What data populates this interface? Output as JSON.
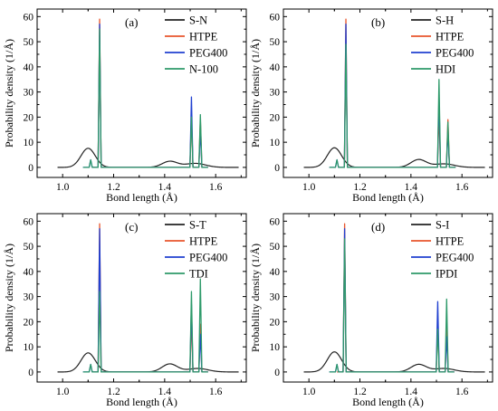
{
  "chart_data": [
    {
      "type": "line",
      "panel_label": "(a)",
      "xlabel": "Bond length (Å)",
      "ylabel": "Probability density (1/Å)",
      "xlim": [
        0.9,
        1.72
      ],
      "ylim": [
        -4,
        63
      ],
      "xticks": [
        "1.0",
        "1.2",
        "1.4",
        "1.6"
      ],
      "yticks": [
        "0",
        "10",
        "20",
        "30",
        "40",
        "50",
        "60"
      ],
      "legend_position": "top-right",
      "series": [
        {
          "name": "S-N",
          "color": "#222222",
          "kind": "smooth",
          "bumps": [
            {
              "center": 1.1,
              "height": 7.6,
              "width": 0.028
            },
            {
              "center": 1.42,
              "height": 2.4,
              "width": 0.03
            },
            {
              "center": 1.52,
              "height": 1.6,
              "width": 0.04
            }
          ]
        },
        {
          "name": "HTPE",
          "color": "#e8552b",
          "kind": "spikes",
          "spikes": [
            {
              "x": 1.145,
              "y": 59
            },
            {
              "x": 1.505,
              "y": 21
            },
            {
              "x": 1.54,
              "y": 19
            }
          ]
        },
        {
          "name": "PEG400",
          "color": "#2040d0",
          "kind": "spikes",
          "spikes": [
            {
              "x": 1.11,
              "y": 3
            },
            {
              "x": 1.145,
              "y": 57
            },
            {
              "x": 1.505,
              "y": 28
            },
            {
              "x": 1.54,
              "y": 15
            }
          ]
        },
        {
          "name": "N-100",
          "color": "#2e9a6a",
          "kind": "spikes",
          "spikes": [
            {
              "x": 1.11,
              "y": 3
            },
            {
              "x": 1.145,
              "y": 55
            },
            {
              "x": 1.505,
              "y": 20
            },
            {
              "x": 1.54,
              "y": 21
            }
          ]
        }
      ]
    },
    {
      "type": "line",
      "panel_label": "(b)",
      "xlabel": "Bond length (Å)",
      "ylabel": "Probability density (1/Å)",
      "xlim": [
        0.9,
        1.72
      ],
      "ylim": [
        -4,
        63
      ],
      "xticks": [
        "1.0",
        "1.2",
        "1.4",
        "1.6"
      ],
      "yticks": [
        "0",
        "10",
        "20",
        "30",
        "40",
        "50",
        "60"
      ],
      "legend_position": "top-right",
      "series": [
        {
          "name": "S-H",
          "color": "#222222",
          "kind": "smooth",
          "bumps": [
            {
              "center": 1.1,
              "height": 7.8,
              "width": 0.028
            },
            {
              "center": 1.43,
              "height": 3.1,
              "width": 0.03
            },
            {
              "center": 1.53,
              "height": 1.4,
              "width": 0.04
            }
          ]
        },
        {
          "name": "HTPE",
          "color": "#e8552b",
          "kind": "spikes",
          "spikes": [
            {
              "x": 1.145,
              "y": 59
            },
            {
              "x": 1.51,
              "y": 22
            },
            {
              "x": 1.545,
              "y": 19
            }
          ]
        },
        {
          "name": "PEG400",
          "color": "#2040d0",
          "kind": "spikes",
          "spikes": [
            {
              "x": 1.11,
              "y": 3
            },
            {
              "x": 1.145,
              "y": 57
            },
            {
              "x": 1.51,
              "y": 28
            },
            {
              "x": 1.545,
              "y": 15
            }
          ]
        },
        {
          "name": "HDI",
          "color": "#2e9a6a",
          "kind": "spikes",
          "spikes": [
            {
              "x": 1.11,
              "y": 3
            },
            {
              "x": 1.145,
              "y": 49
            },
            {
              "x": 1.51,
              "y": 35
            },
            {
              "x": 1.545,
              "y": 18
            }
          ]
        }
      ]
    },
    {
      "type": "line",
      "panel_label": "(c)",
      "xlabel": "Bond length (Å)",
      "ylabel": "Probability density (1/Å)",
      "xlim": [
        0.9,
        1.72
      ],
      "ylim": [
        -4,
        63
      ],
      "xticks": [
        "1.0",
        "1.2",
        "1.4",
        "1.6"
      ],
      "yticks": [
        "0",
        "10",
        "20",
        "30",
        "40",
        "50",
        "60"
      ],
      "legend_position": "top-right",
      "series": [
        {
          "name": "S-T",
          "color": "#222222",
          "kind": "smooth",
          "bumps": [
            {
              "center": 1.1,
              "height": 7.6,
              "width": 0.028
            },
            {
              "center": 1.42,
              "height": 3.2,
              "width": 0.03
            },
            {
              "center": 1.53,
              "height": 1.4,
              "width": 0.04
            }
          ]
        },
        {
          "name": "HTPE",
          "color": "#e8552b",
          "kind": "spikes",
          "spikes": [
            {
              "x": 1.145,
              "y": 59
            },
            {
              "x": 1.505,
              "y": 21
            },
            {
              "x": 1.54,
              "y": 19
            }
          ]
        },
        {
          "name": "PEG400",
          "color": "#2040d0",
          "kind": "spikes",
          "spikes": [
            {
              "x": 1.11,
              "y": 3
            },
            {
              "x": 1.145,
              "y": 57
            },
            {
              "x": 1.505,
              "y": 27
            },
            {
              "x": 1.54,
              "y": 15
            }
          ]
        },
        {
          "name": "TDI",
          "color": "#2e9a6a",
          "kind": "spikes",
          "spikes": [
            {
              "x": 1.11,
              "y": 3
            },
            {
              "x": 1.145,
              "y": 32
            },
            {
              "x": 1.505,
              "y": 32
            },
            {
              "x": 1.54,
              "y": 37
            }
          ]
        }
      ]
    },
    {
      "type": "line",
      "panel_label": "(d)",
      "xlabel": "Bond length (Å)",
      "ylabel": "Probability density (1/Å)",
      "xlim": [
        0.9,
        1.72
      ],
      "ylim": [
        -4,
        63
      ],
      "xticks": [
        "1.0",
        "1.2",
        "1.4",
        "1.6"
      ],
      "yticks": [
        "0",
        "10",
        "20",
        "30",
        "40",
        "50",
        "60"
      ],
      "legend_position": "top-right",
      "series": [
        {
          "name": "S-I",
          "color": "#222222",
          "kind": "smooth",
          "bumps": [
            {
              "center": 1.1,
              "height": 8.0,
              "width": 0.028
            },
            {
              "center": 1.43,
              "height": 3.0,
              "width": 0.03
            },
            {
              "center": 1.53,
              "height": 1.4,
              "width": 0.04
            }
          ]
        },
        {
          "name": "HTPE",
          "color": "#e8552b",
          "kind": "spikes",
          "spikes": [
            {
              "x": 1.14,
              "y": 59
            },
            {
              "x": 1.505,
              "y": 20
            },
            {
              "x": 1.54,
              "y": 19
            }
          ]
        },
        {
          "name": "PEG400",
          "color": "#2040d0",
          "kind": "spikes",
          "spikes": [
            {
              "x": 1.11,
              "y": 3
            },
            {
              "x": 1.14,
              "y": 57
            },
            {
              "x": 1.505,
              "y": 28
            },
            {
              "x": 1.54,
              "y": 14
            }
          ]
        },
        {
          "name": "IPDI",
          "color": "#2e9a6a",
          "kind": "spikes",
          "spikes": [
            {
              "x": 1.11,
              "y": 3
            },
            {
              "x": 1.14,
              "y": 53
            },
            {
              "x": 1.505,
              "y": 17
            },
            {
              "x": 1.54,
              "y": 29
            }
          ]
        }
      ]
    }
  ]
}
